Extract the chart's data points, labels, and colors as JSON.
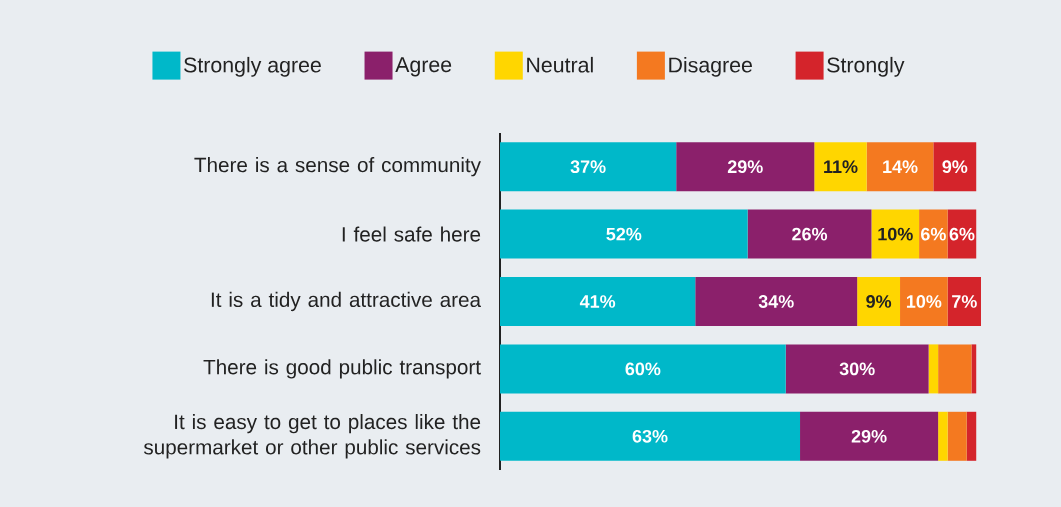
{
  "chart_data": {
    "type": "bar",
    "orientation": "horizontal",
    "stacked": true,
    "legend": "top",
    "tick_labels": "y",
    "categories": [
      "There is a sense of community",
      "I feel safe here",
      "It is a tidy and attractive area",
      "There is good public transport",
      "It is easy to get to places like the supermarket or other public services"
    ],
    "series": [
      {
        "name": "Strongly agree",
        "color": "#00b8c9",
        "values": [
          37,
          52,
          41,
          60,
          63
        ],
        "value_labels": [
          "37%",
          "52%",
          "41%",
          "60%",
          "63%"
        ]
      },
      {
        "name": "Agree",
        "color": "#8b206b",
        "values": [
          29,
          26,
          34,
          30,
          29
        ],
        "value_labels": [
          "29%",
          "26%",
          "34%",
          "30%",
          "29%"
        ]
      },
      {
        "name": "Neutral",
        "color": "#ffd600",
        "values": [
          11,
          10,
          9,
          2,
          2
        ],
        "value_labels": [
          "11%",
          "10%",
          "9%",
          null,
          null
        ]
      },
      {
        "name": "Disagree",
        "color": "#f47920",
        "values": [
          14,
          6,
          10,
          7,
          4
        ],
        "value_labels": [
          "14%",
          "6%",
          "10%",
          null,
          null
        ]
      },
      {
        "name": "Strongly",
        "color": "#d4242b",
        "values": [
          9,
          6,
          7,
          1,
          2
        ],
        "value_labels": [
          "9%",
          "6%",
          "7%",
          null,
          null
        ]
      }
    ]
  }
}
